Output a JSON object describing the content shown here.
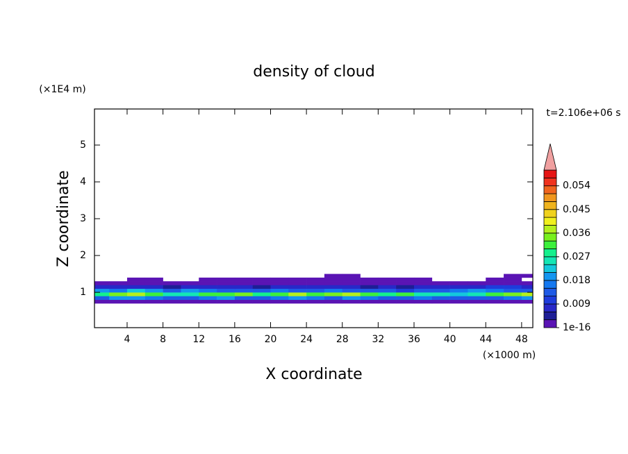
{
  "chart_data": {
    "type": "contour",
    "title": "density of cloud",
    "x_label": "X coordinate",
    "y_label": "Z coordinate",
    "x_unit": "(×1000 m)",
    "y_unit": "(×1E4 m)",
    "time_label": "t=2.106e+06 s",
    "xlim": [
      0.36,
      49.25
    ],
    "ylim": [
      0.04,
      5.98
    ],
    "xticks": [
      4,
      8,
      12,
      16,
      20,
      24,
      28,
      32,
      36,
      40,
      44,
      48
    ],
    "yticks": [
      1,
      2,
      3,
      4,
      5
    ],
    "x_edges": [
      0,
      2,
      4,
      6,
      8,
      10,
      12,
      14,
      16,
      18,
      20,
      22,
      24,
      26,
      28,
      30,
      32,
      34,
      36,
      38,
      40,
      42,
      44,
      46,
      48,
      50
    ],
    "z_edges": [
      0.7,
      0.8,
      0.9,
      1.0,
      1.1,
      1.2,
      1.3,
      1.4,
      1.5
    ],
    "values": [
      [
        0.002,
        0.002,
        0.002,
        0.002,
        0.002,
        0.002,
        0.002,
        0.002,
        0.002,
        0.002,
        0.002,
        0.002,
        0.002,
        0.002,
        0.002,
        0.002,
        0.002,
        0.002,
        0.002,
        0.002,
        0.002,
        0.002,
        0.002,
        0.002,
        0.002
      ],
      [
        0.014,
        0.018,
        0.02,
        0.016,
        0.012,
        0.014,
        0.016,
        0.018,
        0.014,
        0.012,
        0.016,
        0.018,
        0.016,
        0.014,
        0.018,
        0.016,
        0.014,
        0.012,
        0.016,
        0.014,
        0.012,
        0.014,
        0.012,
        0.016,
        0.018
      ],
      [
        0.028,
        0.034,
        0.038,
        0.03,
        0.024,
        0.026,
        0.032,
        0.03,
        0.034,
        0.028,
        0.03,
        0.036,
        0.032,
        0.034,
        0.038,
        0.032,
        0.028,
        0.03,
        0.026,
        0.024,
        0.022,
        0.026,
        0.03,
        0.034,
        0.036
      ],
      [
        0.02,
        0.016,
        0.022,
        0.02,
        0.014,
        0.018,
        0.016,
        0.014,
        0.012,
        0.014,
        0.016,
        0.012,
        0.014,
        0.016,
        0.012,
        0.014,
        0.012,
        0.01,
        0.012,
        0.014,
        0.016,
        0.018,
        0.016,
        0.014,
        0.012
      ],
      [
        0.008,
        0.006,
        0.008,
        0.007,
        0.005,
        0.006,
        0.007,
        0.008,
        0.006,
        0.005,
        0.006,
        0.007,
        0.006,
        0.008,
        0.006,
        0.005,
        0.006,
        0.005,
        0.006,
        0.007,
        0.006,
        0.008,
        0.01,
        0.009,
        0.008
      ],
      [
        0.002,
        0.002,
        0.002,
        0.002,
        0.002,
        0.002,
        0.002,
        0.002,
        0.002,
        0.002,
        0.002,
        0.002,
        0.002,
        0.002,
        0.002,
        0.002,
        0.002,
        0.002,
        0.002,
        0.002,
        0.002,
        0.002,
        0.002,
        0.002,
        0.002
      ],
      [
        null,
        null,
        0.001,
        0.001,
        null,
        null,
        0.001,
        0.001,
        0.001,
        0.001,
        0.001,
        0.001,
        0.001,
        0.001,
        0.001,
        0.001,
        0.001,
        0.001,
        0.001,
        null,
        null,
        null,
        0.001,
        0.001,
        null
      ],
      [
        null,
        null,
        null,
        null,
        null,
        null,
        null,
        null,
        null,
        null,
        null,
        null,
        null,
        0.001,
        0.001,
        null,
        null,
        null,
        null,
        null,
        null,
        null,
        null,
        0.001,
        0.001
      ]
    ],
    "levels": [
      1e-16,
      0.003,
      0.006,
      0.009,
      0.012,
      0.015,
      0.018,
      0.021,
      0.024,
      0.027,
      0.03,
      0.033,
      0.036,
      0.039,
      0.042,
      0.045,
      0.048,
      0.051,
      0.054,
      0.057,
      0.06
    ],
    "colors": [
      "#5a14b4",
      "#1e1e96",
      "#2828c8",
      "#1e3cdc",
      "#1e5ae6",
      "#1478f0",
      "#1496f0",
      "#14c8dc",
      "#14e6b4",
      "#14f08c",
      "#3cf03c",
      "#78f01e",
      "#b4f01e",
      "#f0f01e",
      "#f0d21e",
      "#f0b41e",
      "#f0961e",
      "#f0641e",
      "#f0321e",
      "#e61414"
    ],
    "overflow_color": "#f0a0a0",
    "colorbar_ticks": [
      {
        "value": 1e-16,
        "label": "1e-16"
      },
      0.009,
      0.018,
      0.027,
      0.036,
      0.045,
      0.054
    ]
  }
}
